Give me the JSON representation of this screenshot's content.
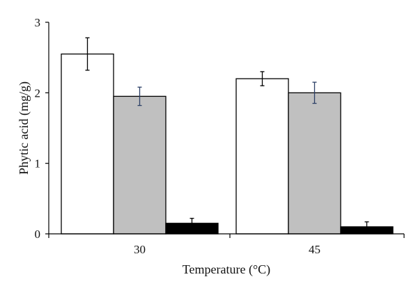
{
  "chart_data": {
    "type": "bar",
    "xlabel": "Temperature (°C)",
    "ylabel": "Phytic acid (mg/g)",
    "ylim": [
      0,
      3
    ],
    "yticks": [
      "0",
      "1",
      "2",
      "3"
    ],
    "categories": [
      "30",
      "45"
    ],
    "grid": false,
    "legend": "none",
    "series": [
      {
        "color": "#ffffff",
        "values": [
          2.55,
          2.2
        ],
        "errors": [
          0.23,
          0.1
        ]
      },
      {
        "color": "#c0c0c0",
        "values": [
          1.95,
          2.0
        ],
        "errors": [
          0.13,
          0.15
        ]
      },
      {
        "color": "#000000",
        "values": [
          0.15,
          0.1
        ],
        "errors": [
          0.07,
          0.07
        ]
      }
    ],
    "colors": {
      "bar_stroke": "#000000",
      "errorbar_gray_series": "#2b3f66",
      "axis": "#000000"
    }
  }
}
